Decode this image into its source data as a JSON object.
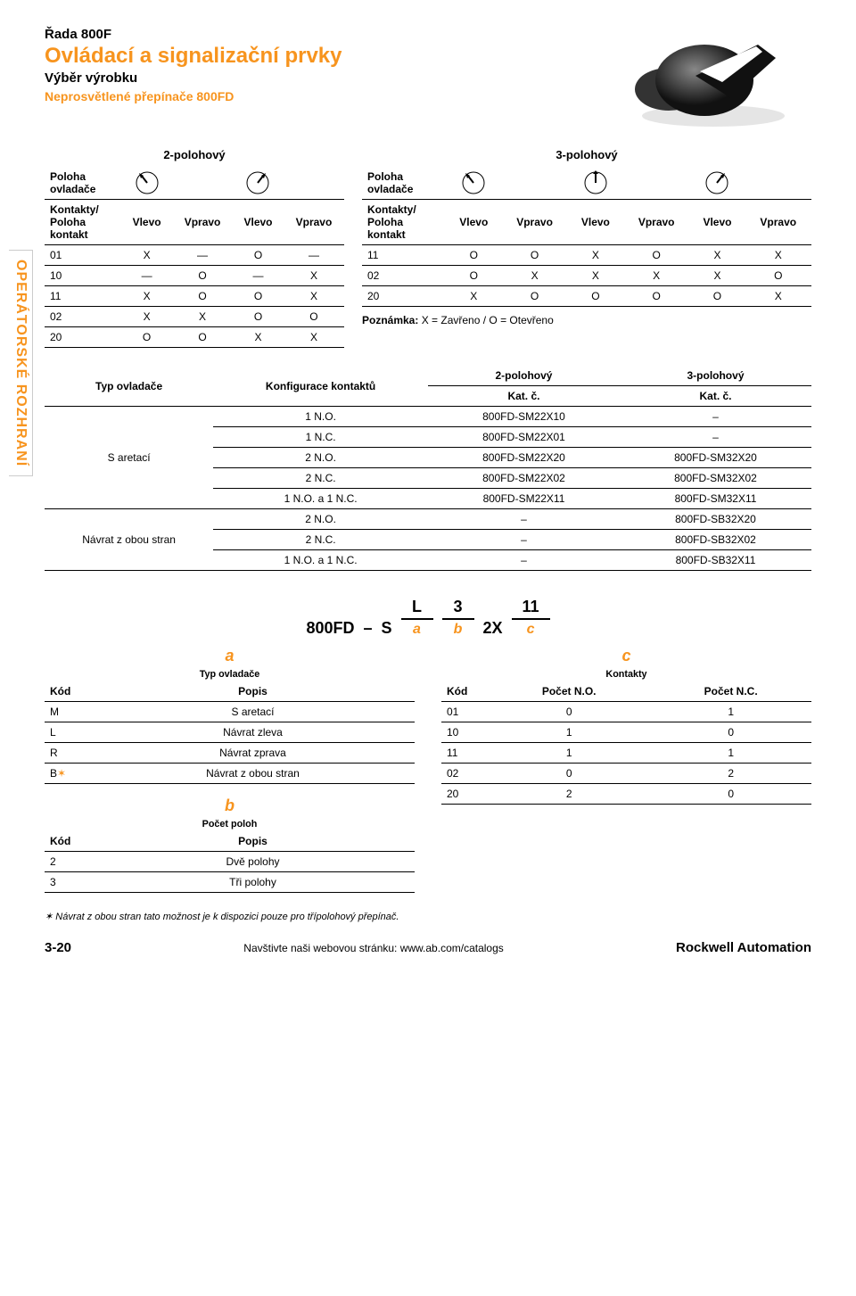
{
  "header": {
    "series": "Řada 800F",
    "title": "Ovládací a signalizační prvky",
    "subtitle": "Výběr výrobku",
    "subtitle2": "Neprosvětlené přepínače 800FD"
  },
  "sidebar": "OPERÁTORSKÉ ROZHRANÍ",
  "top": {
    "cap_2p": "2-polohový",
    "cap_3p": "3-polohový",
    "row_pos": "Poloha\novladače",
    "row_kon": "Kontakty/\nPoloha\nkontakt",
    "vlevo": "Vlevo",
    "vpravo": "Vpravo",
    "t2": {
      "rows": [
        [
          "01",
          "X",
          "—",
          "O",
          "—"
        ],
        [
          "10",
          "—",
          "O",
          "—",
          "X"
        ],
        [
          "11",
          "X",
          "O",
          "O",
          "X"
        ],
        [
          "02",
          "X",
          "X",
          "O",
          "O"
        ],
        [
          "20",
          "O",
          "O",
          "X",
          "X"
        ]
      ]
    },
    "t3": {
      "rows": [
        [
          "11",
          "O",
          "O",
          "X",
          "O",
          "X",
          "X"
        ],
        [
          "02",
          "O",
          "X",
          "X",
          "X",
          "X",
          "O"
        ],
        [
          "20",
          "X",
          "O",
          "O",
          "O",
          "O",
          "X"
        ]
      ]
    },
    "note_label": "Poznámka:",
    "note": "X = Zavřeno / O = Otevřeno"
  },
  "main": {
    "hdr_typ": "Typ ovladače",
    "hdr_konf": "Konfigurace kontaktů",
    "hdr_2p": "2-polohový",
    "hdr_3p": "3-polohový",
    "hdr_kat": "Kat. č.",
    "groups": [
      {
        "label": "S aretací",
        "rows": [
          [
            "1 N.O.",
            "800FD-SM22X10",
            "–"
          ],
          [
            "1 N.C.",
            "800FD-SM22X01",
            "–"
          ],
          [
            "2 N.O.",
            "800FD-SM22X20",
            "800FD-SM32X20"
          ],
          [
            "2 N.C.",
            "800FD-SM22X02",
            "800FD-SM32X02"
          ],
          [
            "1 N.O. a 1 N.C.",
            "800FD-SM22X11",
            "800FD-SM32X11"
          ]
        ]
      },
      {
        "label": "Návrat z obou stran",
        "rows": [
          [
            "2 N.O.",
            "–",
            "800FD-SB32X20"
          ],
          [
            "2 N.C.",
            "–",
            "800FD-SB32X02"
          ],
          [
            "1 N.O. a 1 N.C.",
            "–",
            "800FD-SB32X11"
          ]
        ]
      }
    ]
  },
  "catnum": {
    "prefix": "800FD",
    "dash": "–",
    "s": "S",
    "a": "L",
    "b": "3",
    "x": "2X",
    "c": "11",
    "la": "a",
    "lb": "b",
    "lc": "c"
  },
  "lower": {
    "a": {
      "letter": "a",
      "title": "Typ ovladače",
      "kod": "Kód",
      "popis": "Popis",
      "rows": [
        [
          "M",
          "S aretací"
        ],
        [
          "L",
          "Návrat zleva"
        ],
        [
          "R",
          "Návrat zprava"
        ],
        [
          "B✶",
          "Návrat z obou stran"
        ]
      ]
    },
    "b": {
      "letter": "b",
      "title": "Počet poloh",
      "kod": "Kód",
      "popis": "Popis",
      "rows": [
        [
          "2",
          "Dvě polohy"
        ],
        [
          "3",
          "Tři polohy"
        ]
      ]
    },
    "c": {
      "letter": "c",
      "title": "Kontakty",
      "kod": "Kód",
      "no": "Počet N.O.",
      "nc": "Počet N.C.",
      "rows": [
        [
          "01",
          "0",
          "1"
        ],
        [
          "10",
          "1",
          "0"
        ],
        [
          "11",
          "1",
          "1"
        ],
        [
          "02",
          "0",
          "2"
        ],
        [
          "20",
          "2",
          "0"
        ]
      ]
    }
  },
  "footnote": "✶ Návrat z obou stran tato možnost je k dispozici pouze pro třípolohový přepínač.",
  "footer": {
    "page": "3-20",
    "web": "Navštivte naši webovou stránku: www.ab.com/catalogs",
    "brand": "Rockwell Automation"
  }
}
